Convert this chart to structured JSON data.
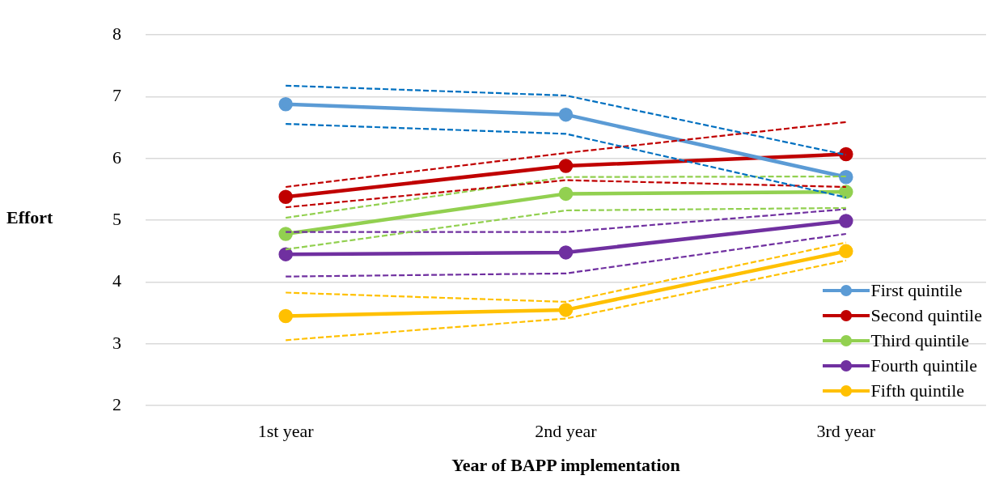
{
  "chart_data": {
    "type": "line",
    "xlabel": "Year of BAPP implementation",
    "ylabel": "Effort",
    "categories": [
      "1st year",
      "2nd year",
      "3rd year"
    ],
    "series": [
      {
        "name": "First quintile",
        "color": "#5b9bd5",
        "values": [
          6.88,
          6.71,
          5.7
        ]
      },
      {
        "name": "Second quintile",
        "color": "#c00000",
        "values": [
          5.38,
          5.88,
          6.07
        ]
      },
      {
        "name": "Third quintile",
        "color": "#92d050",
        "values": [
          4.78,
          5.43,
          5.46
        ]
      },
      {
        "name": "Fourth quintile",
        "color": "#7030a0",
        "values": [
          4.45,
          4.48,
          4.99
        ]
      },
      {
        "name": "Fifth quintile",
        "color": "#ffc000",
        "values": [
          3.45,
          3.55,
          4.5
        ]
      },
      {
        "color": "#0070c0",
        "values": [
          7.18,
          7.02,
          6.06
        ],
        "line_style": "dashed",
        "marker": "none"
      },
      {
        "color": "#0070c0",
        "values": [
          6.56,
          6.4,
          5.37
        ],
        "line_style": "dashed",
        "marker": "none"
      },
      {
        "color": "#c00000",
        "values": [
          5.54,
          6.09,
          6.59
        ],
        "line_style": "dashed",
        "marker": "none"
      },
      {
        "color": "#c00000",
        "values": [
          5.21,
          5.65,
          5.54
        ],
        "line_style": "dashed",
        "marker": "none"
      },
      {
        "color": "#92d050",
        "values": [
          5.04,
          5.7,
          5.71
        ],
        "line_style": "dashed",
        "marker": "none"
      },
      {
        "color": "#92d050",
        "values": [
          4.53,
          5.16,
          5.2
        ],
        "line_style": "dashed",
        "marker": "none"
      },
      {
        "color": "#7030a0",
        "values": [
          4.81,
          4.81,
          5.18
        ],
        "line_style": "dashed",
        "marker": "none"
      },
      {
        "color": "#7030a0",
        "values": [
          4.09,
          4.14,
          4.78
        ],
        "line_style": "dashed",
        "marker": "none"
      },
      {
        "color": "#ffc000",
        "values": [
          3.83,
          3.68,
          4.64
        ],
        "line_style": "dashed",
        "marker": "none"
      },
      {
        "color": "#ffc000",
        "values": [
          3.06,
          3.41,
          4.35
        ],
        "line_style": "dashed",
        "marker": "none"
      }
    ],
    "ylim": [
      2,
      8
    ],
    "yticks": [
      2,
      3,
      4,
      5,
      6,
      7,
      8
    ],
    "grid": "y",
    "legend": "bottom right",
    "marker": "circle",
    "line_style": "solid"
  }
}
